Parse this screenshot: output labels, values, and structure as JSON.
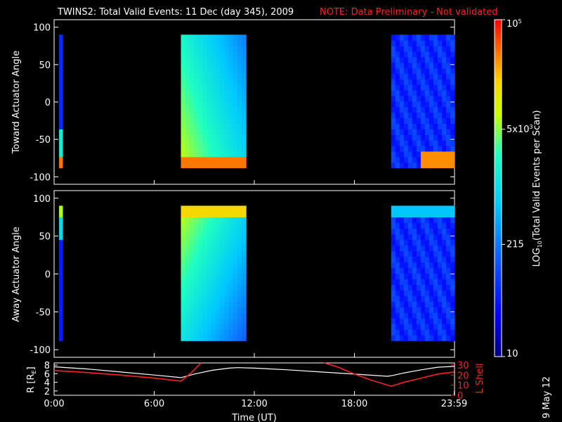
{
  "header": {
    "title": "TWINS2: Total Valid Events: 11 Dec (day 345), 2009",
    "note": "NOTE: Data Preliminary - Not validated"
  },
  "footer": {
    "date_stamp": "9 May 12"
  },
  "colors": {
    "background": "#000000",
    "axes": "#ffffff",
    "note": "#ff2020",
    "lshell": "#ff2020",
    "radius": "#ffffff"
  },
  "chart_data": [
    {
      "type": "heatmap",
      "name": "toward",
      "ylabel": "Toward Actuator Angle",
      "ylim": [
        -110,
        110
      ],
      "yticks": [
        "100",
        "50",
        "0",
        "-50",
        "-100"
      ],
      "xlim": [
        0,
        24
      ],
      "data_ylim": [
        -88,
        90
      ],
      "segments": [
        {
          "start": 0.3,
          "end": 0.5
        },
        {
          "start": 7.6,
          "end": 11.5
        },
        {
          "start": 20.2,
          "end": 24
        }
      ]
    },
    {
      "type": "heatmap",
      "name": "away",
      "ylabel": "Away Actuator Angle",
      "ylim": [
        -110,
        110
      ],
      "yticks": [
        "100",
        "50",
        "0",
        "-50",
        "-100"
      ],
      "xlim": [
        0,
        24
      ],
      "data_ylim": [
        -88,
        90
      ],
      "segments": [
        {
          "start": 0.3,
          "end": 0.5
        },
        {
          "start": 7.6,
          "end": 11.5
        },
        {
          "start": 20.2,
          "end": 24
        }
      ]
    },
    {
      "type": "line",
      "name": "orbit",
      "xlabel": "Time (UT)",
      "xticks": [
        "0:00",
        "6:00",
        "12:00",
        "18:00",
        "23:59"
      ],
      "xtick_hours": [
        0,
        6,
        12,
        18,
        23.98
      ],
      "ylabel_left": "R [R",
      "ylabel_left_sub": "E",
      "ylabel_left_end": "]",
      "ylabel_right": "L Shell",
      "yticks_left": [
        "8",
        "6",
        "4",
        "2"
      ],
      "yticks_right": [
        "30",
        "20",
        "10",
        "0"
      ],
      "ylim_left": [
        1,
        8.5
      ],
      "ylim_right": [
        0,
        32
      ],
      "series": [
        {
          "axis": "left",
          "x": [
            0,
            2,
            4,
            6,
            7.6,
            8.5,
            9.5,
            10.5,
            11,
            12,
            14,
            16,
            18,
            20,
            20.3,
            21,
            22,
            23,
            23.98
          ],
          "values": [
            7.6,
            7.1,
            6.4,
            5.7,
            5.1,
            6.0,
            6.8,
            7.3,
            7.4,
            7.3,
            6.9,
            6.4,
            5.9,
            5.4,
            5.6,
            6.2,
            6.9,
            7.5,
            7.7
          ]
        },
        {
          "axis": "right",
          "x": [
            0,
            2,
            4,
            6,
            7.6,
            8.2,
            8.8,
            null,
            16.2,
            17,
            18,
            19,
            20.2,
            21,
            22,
            23,
            23.98
          ],
          "values": [
            24.5,
            22.5,
            20,
            17,
            14,
            22,
            32,
            null,
            32,
            28,
            21,
            15,
            9,
            13,
            17,
            21,
            23
          ]
        }
      ]
    }
  ],
  "colorbar": {
    "label_pre": "LOG",
    "label_sub": "10",
    "label_post": "(Total Valid Events per Scan)",
    "ticks": [
      {
        "base": "10",
        "exp": "5",
        "value": 100000
      },
      {
        "base": "5x10",
        "exp": "3",
        "value": 5000
      },
      {
        "base": "215",
        "exp": "",
        "value": 215
      },
      {
        "base": "10",
        "exp": "",
        "value": 10
      }
    ],
    "range": [
      10,
      100000
    ]
  }
}
